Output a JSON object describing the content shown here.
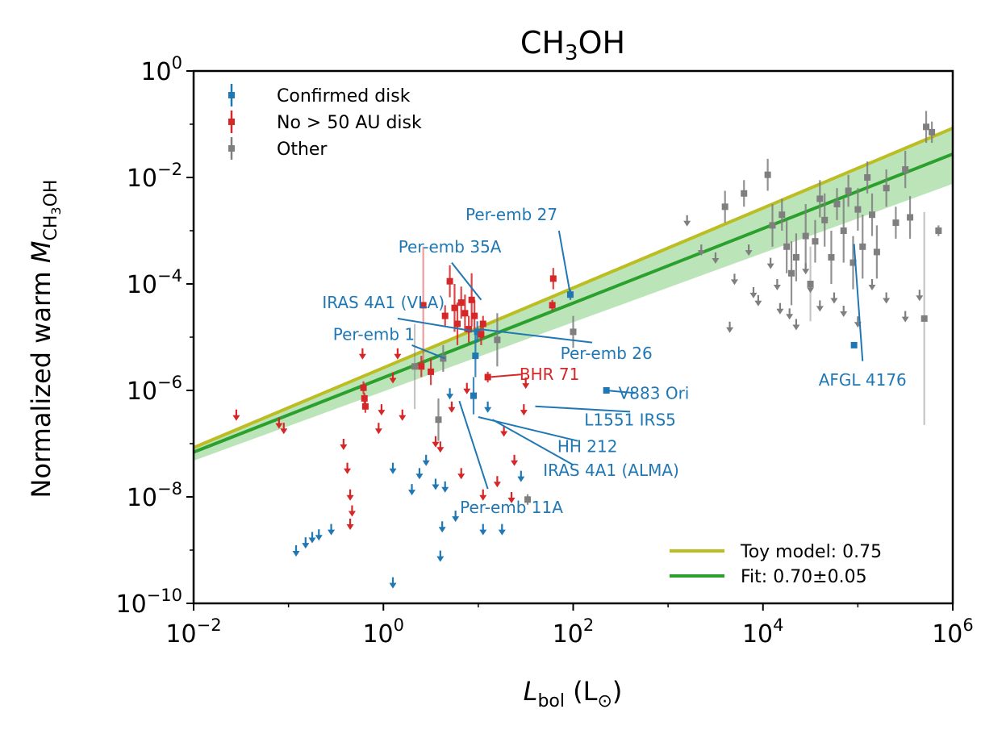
{
  "chart_data": {
    "type": "scatter",
    "title_main": "CH",
    "title_sub": "3",
    "title_end": "OH",
    "xlabel_var": "L",
    "xlabel_sub": "bol",
    "xlabel_unit_open": " (L",
    "xlabel_unit_sym": "⊙",
    "xlabel_unit_close": ")",
    "ylabel_main": "Normalized warm ",
    "ylabel_var": "M",
    "ylabel_sub_a": "CH",
    "ylabel_sub_b": "3",
    "ylabel_sub_c": "OH",
    "xscale": "log",
    "yscale": "log",
    "xlim_exp": [
      -2,
      6
    ],
    "ylim_exp": [
      -10,
      0
    ],
    "x_ticks": [
      {
        "base": "10",
        "exp": "−2",
        "value": -2
      },
      {
        "base": "10",
        "exp": "0",
        "value": 0
      },
      {
        "base": "10",
        "exp": "2",
        "value": 2
      },
      {
        "base": "10",
        "exp": "4",
        "value": 4
      },
      {
        "base": "10",
        "exp": "6",
        "value": 6
      }
    ],
    "y_ticks": [
      {
        "base": "10",
        "exp": "0",
        "value": 0
      },
      {
        "base": "10",
        "exp": "−2",
        "value": -2
      },
      {
        "base": "10",
        "exp": "−4",
        "value": -4
      },
      {
        "base": "10",
        "exp": "−6",
        "value": -6
      },
      {
        "base": "10",
        "exp": "−8",
        "value": -8
      },
      {
        "base": "10",
        "exp": "−10",
        "value": -10
      }
    ],
    "legend_points": [
      {
        "label": "Confirmed disk",
        "color": "#1f77b4"
      },
      {
        "label": "No > 50 AU disk",
        "color": "#d62728"
      },
      {
        "label": "Other",
        "color": "#7f7f7f"
      }
    ],
    "legend_lines": [
      {
        "label": "Toy model: 0.75",
        "color": "#bcbd22"
      },
      {
        "label": "Fit: 0.70±0.05",
        "color": "#2ca02c"
      }
    ],
    "lines": {
      "toy": {
        "slope": 0.75,
        "intercept": -5.575,
        "color": "#bcbd22"
      },
      "fit": {
        "slope": 0.7,
        "intercept": -5.76,
        "color": "#2ca02c"
      },
      "band_lower": {
        "slope": 0.65,
        "intercept": -6.02
      },
      "band_upper": {
        "slope": 0.75,
        "intercept": -5.58
      },
      "band_color": "#98d594"
    },
    "series": [
      {
        "name": "Confirmed disk",
        "color": "#1f77b4",
        "detections": [
          {
            "x": 1.97,
            "y": -4.2,
            "err": 0.1
          },
          {
            "x": 0.99,
            "y": -4.9,
            "err": 0.2
          },
          {
            "x": 0.97,
            "y": -5.35,
            "err": 0.4
          },
          {
            "x": 0.95,
            "y": -6.1,
            "err": 0.35
          },
          {
            "x": 2.35,
            "y": -6.0,
            "err": 0.06
          },
          {
            "x": 4.96,
            "y": -5.15,
            "err": 0.05
          }
        ],
        "limits": [
          {
            "x": -0.92,
            "y": -9.0
          },
          {
            "x": -0.82,
            "y": -8.85
          },
          {
            "x": -0.75,
            "y": -8.75
          },
          {
            "x": -0.68,
            "y": -8.7
          },
          {
            "x": -0.55,
            "y": -8.6
          },
          {
            "x": 0.1,
            "y": -9.6
          },
          {
            "x": 0.1,
            "y": -7.45
          },
          {
            "x": 0.3,
            "y": -7.85
          },
          {
            "x": 0.38,
            "y": -7.55
          },
          {
            "x": 0.45,
            "y": -7.3
          },
          {
            "x": 0.55,
            "y": -7.75
          },
          {
            "x": 0.6,
            "y": -9.1
          },
          {
            "x": 0.62,
            "y": -8.55
          },
          {
            "x": 0.65,
            "y": -7.8
          },
          {
            "x": 0.76,
            "y": -8.35
          },
          {
            "x": 1.05,
            "y": -8.6
          },
          {
            "x": 1.25,
            "y": -8.6
          },
          {
            "x": 1.45,
            "y": -7.6
          },
          {
            "x": 1.1,
            "y": -6.3
          },
          {
            "x": 0.7,
            "y": -6.05
          }
        ]
      },
      {
        "name": "No > 50 AU disk",
        "color": "#d62728",
        "detections": [
          {
            "x": -0.21,
            "y": -5.95,
            "err": 0.12
          },
          {
            "x": -0.2,
            "y": -6.15,
            "err": 0.1
          },
          {
            "x": -0.19,
            "y": -6.3,
            "err": 0.12
          },
          {
            "x": 0.4,
            "y": -5.55,
            "err": 0.2
          },
          {
            "x": 0.42,
            "y": -4.4,
            "err": 1.1
          },
          {
            "x": 0.5,
            "y": -5.65,
            "err": 0.25
          },
          {
            "x": 0.65,
            "y": -4.6,
            "err": 0.2
          },
          {
            "x": 0.7,
            "y": -3.95,
            "err": 0.3
          },
          {
            "x": 0.75,
            "y": -4.45,
            "err": 0.45
          },
          {
            "x": 0.78,
            "y": -4.75,
            "err": 0.4
          },
          {
            "x": 0.82,
            "y": -4.35,
            "err": 0.3
          },
          {
            "x": 0.86,
            "y": -4.55,
            "err": 0.35
          },
          {
            "x": 0.9,
            "y": -4.85,
            "err": 0.25
          },
          {
            "x": 0.93,
            "y": -4.3,
            "err": 0.5
          },
          {
            "x": 0.96,
            "y": -4.6,
            "err": 0.3
          },
          {
            "x": 1.03,
            "y": -4.95,
            "err": 0.2
          },
          {
            "x": 1.05,
            "y": -4.75,
            "err": 0.15
          },
          {
            "x": 1.1,
            "y": -5.75,
            "err": 0.1
          },
          {
            "x": 1.79,
            "y": -3.9,
            "err": 0.2
          },
          {
            "x": 1.78,
            "y": -4.4,
            "err": 0.1
          }
        ],
        "limits": [
          {
            "x": -1.55,
            "y": -6.45
          },
          {
            "x": -1.1,
            "y": -6.6
          },
          {
            "x": -1.05,
            "y": -6.7
          },
          {
            "x": -0.42,
            "y": -7.0
          },
          {
            "x": -0.38,
            "y": -7.45
          },
          {
            "x": -0.35,
            "y": -7.95
          },
          {
            "x": -0.33,
            "y": -8.25
          },
          {
            "x": -0.35,
            "y": -8.5
          },
          {
            "x": -0.22,
            "y": -5.3
          },
          {
            "x": -0.05,
            "y": -6.7
          },
          {
            "x": -0.02,
            "y": -6.35
          },
          {
            "x": 0.1,
            "y": -5.75
          },
          {
            "x": 0.15,
            "y": -5.3
          },
          {
            "x": 0.2,
            "y": -6.45
          },
          {
            "x": 0.55,
            "y": -6.95
          },
          {
            "x": 0.6,
            "y": -7.05
          },
          {
            "x": 0.72,
            "y": -6.3
          },
          {
            "x": 0.82,
            "y": -7.55
          },
          {
            "x": 1.2,
            "y": -7.7
          },
          {
            "x": 1.27,
            "y": -6.75
          },
          {
            "x": 1.38,
            "y": -7.3
          },
          {
            "x": 1.48,
            "y": -6.35
          },
          {
            "x": 1.5,
            "y": -5.85
          },
          {
            "x": 0.88,
            "y": -5.95
          },
          {
            "x": 1.05,
            "y": -7.95
          },
          {
            "x": 1.35,
            "y": -8.0
          }
        ]
      },
      {
        "name": "Other",
        "color": "#7f7f7f",
        "detections": [
          {
            "x": 0.33,
            "y": -5.55,
            "err": 0.8
          },
          {
            "x": 0.63,
            "y": -5.4,
            "err": 0.25
          },
          {
            "x": 1.2,
            "y": -5.05,
            "err": 0.5
          },
          {
            "x": 2.0,
            "y": -4.9,
            "err": 0.3
          },
          {
            "x": 1.52,
            "y": -8.05,
            "err": 0.1
          },
          {
            "x": 0.58,
            "y": -6.55,
            "err": 0.4
          },
          {
            "x": 3.6,
            "y": -2.55,
            "err": 0.3
          },
          {
            "x": 3.8,
            "y": -2.3,
            "err": 0.25
          },
          {
            "x": 4.05,
            "y": -1.95,
            "err": 0.3
          },
          {
            "x": 4.1,
            "y": -2.9,
            "err": 0.4
          },
          {
            "x": 4.2,
            "y": -2.7,
            "err": 0.3
          },
          {
            "x": 4.25,
            "y": -3.3,
            "err": 0.5
          },
          {
            "x": 4.3,
            "y": -3.8,
            "err": 0.6
          },
          {
            "x": 4.35,
            "y": -3.5,
            "err": 0.45
          },
          {
            "x": 4.45,
            "y": -3.1,
            "err": 0.6
          },
          {
            "x": 4.5,
            "y": -4.0,
            "err": 0.7
          },
          {
            "x": 4.55,
            "y": -3.2,
            "err": 0.4
          },
          {
            "x": 4.6,
            "y": -2.4,
            "err": 0.35
          },
          {
            "x": 4.65,
            "y": -2.8,
            "err": 0.5
          },
          {
            "x": 4.72,
            "y": -3.5,
            "err": 0.5
          },
          {
            "x": 4.78,
            "y": -2.5,
            "err": 0.3
          },
          {
            "x": 4.85,
            "y": -3.0,
            "err": 0.6
          },
          {
            "x": 4.9,
            "y": -2.25,
            "err": 0.3
          },
          {
            "x": 4.95,
            "y": -3.6,
            "err": 0.5
          },
          {
            "x": 5.0,
            "y": -2.6,
            "err": 0.4
          },
          {
            "x": 5.05,
            "y": -3.3,
            "err": 0.6
          },
          {
            "x": 5.1,
            "y": -2.0,
            "err": 0.3
          },
          {
            "x": 5.15,
            "y": -2.7,
            "err": 0.4
          },
          {
            "x": 5.2,
            "y": -3.4,
            "err": 0.5
          },
          {
            "x": 5.3,
            "y": -2.2,
            "err": 0.35
          },
          {
            "x": 5.4,
            "y": -2.85,
            "err": 0.3
          },
          {
            "x": 5.5,
            "y": -1.85,
            "err": 0.35
          },
          {
            "x": 5.55,
            "y": -2.75,
            "err": 0.4
          },
          {
            "x": 5.72,
            "y": -1.05,
            "err": 0.3
          },
          {
            "x": 5.78,
            "y": -1.15,
            "err": 0.2
          },
          {
            "x": 5.7,
            "y": -4.65,
            "err": 2.0
          },
          {
            "x": 5.85,
            "y": -3.0,
            "err": 0.1
          }
        ],
        "limits": [
          {
            "x": 3.2,
            "y": -2.8
          },
          {
            "x": 3.35,
            "y": -3.35
          },
          {
            "x": 3.5,
            "y": -3.5
          },
          {
            "x": 3.65,
            "y": -4.8
          },
          {
            "x": 3.7,
            "y": -3.9
          },
          {
            "x": 3.85,
            "y": -3.35
          },
          {
            "x": 3.9,
            "y": -4.15
          },
          {
            "x": 3.95,
            "y": -4.3
          },
          {
            "x": 4.08,
            "y": -3.6
          },
          {
            "x": 4.15,
            "y": -4.0
          },
          {
            "x": 4.18,
            "y": -4.45
          },
          {
            "x": 4.28,
            "y": -4.55
          },
          {
            "x": 4.35,
            "y": -4.75
          },
          {
            "x": 4.5,
            "y": -4.05
          },
          {
            "x": 4.6,
            "y": -4.4
          },
          {
            "x": 4.75,
            "y": -4.25
          },
          {
            "x": 4.85,
            "y": -4.5
          },
          {
            "x": 5.0,
            "y": -4.7
          },
          {
            "x": 5.15,
            "y": -4.0
          },
          {
            "x": 5.5,
            "y": -4.6
          },
          {
            "x": 5.65,
            "y": -4.2
          },
          {
            "x": 5.3,
            "y": -4.25
          },
          {
            "x": 4.45,
            "y": -3.7
          }
        ]
      }
    ],
    "annotations": [
      {
        "text": "Per-emb 27",
        "color": "#1f77b4",
        "target": [
          1.97,
          -4.2
        ],
        "label_pos": [
          1.35,
          -2.7
        ],
        "leader_from": [
          1.85,
          -3.0
        ]
      },
      {
        "text": "Per-emb 35A",
        "color": "#1f77b4",
        "target": [
          1.03,
          -4.3
        ],
        "label_pos": [
          0.7,
          -3.3
        ],
        "leader_from": [
          0.72,
          -3.6
        ]
      },
      {
        "text": "IRAS 4A1 (VLA)",
        "color": "#1f77b4",
        "target": [
          0.99,
          -4.9
        ],
        "label_pos": [
          0.0,
          -4.35
        ],
        "leader_from": [
          0.15,
          -4.65
        ]
      },
      {
        "text": "Per-emb 1",
        "color": "#1f77b4",
        "target": [
          0.65,
          -5.4
        ],
        "label_pos": [
          -0.1,
          -4.95
        ],
        "leader_from": [
          0.3,
          -5.15
        ]
      },
      {
        "text": "Per-emb 26",
        "color": "#1f77b4",
        "target": [
          1.02,
          -4.85
        ],
        "label_pos": [
          2.35,
          -5.3
        ],
        "leader_from": [
          2.2,
          -5.1
        ]
      },
      {
        "text": "BHR 71",
        "color": "#d62728",
        "target": [
          1.12,
          -5.75
        ],
        "label_pos": [
          1.75,
          -5.7
        ],
        "leader_from": [
          1.45,
          -5.7
        ]
      },
      {
        "text": "V883 Ori",
        "color": "#1f77b4",
        "target": [
          2.35,
          -6.0
        ],
        "label_pos": [
          2.85,
          -6.05
        ],
        "leader_from": [
          2.65,
          -6.05
        ]
      },
      {
        "text": "AFGL 4176",
        "color": "#1f77b4",
        "target": [
          4.96,
          -3.25
        ],
        "label_pos": [
          5.05,
          -5.8
        ],
        "leader_from": [
          5.05,
          -5.45
        ]
      },
      {
        "text": "L1551 IRS5",
        "color": "#1f77b4",
        "target": [
          1.6,
          -6.3
        ],
        "label_pos": [
          2.6,
          -6.55
        ],
        "leader_from": [
          2.6,
          -6.4
        ]
      },
      {
        "text": "HH 212",
        "color": "#1f77b4",
        "target": [
          1.0,
          -6.5
        ],
        "label_pos": [
          2.15,
          -7.05
        ],
        "leader_from": [
          2.05,
          -6.95
        ]
      },
      {
        "text": "IRAS 4A1 (ALMA)",
        "color": "#1f77b4",
        "target": [
          1.15,
          -6.55
        ],
        "label_pos": [
          2.4,
          -7.5
        ],
        "leader_from": [
          2.0,
          -7.4
        ]
      },
      {
        "text": "Per-emb 11A",
        "color": "#1f77b4",
        "target": [
          0.8,
          -6.2
        ],
        "label_pos": [
          1.35,
          -8.2
        ],
        "leader_from": [
          1.1,
          -7.85
        ]
      }
    ]
  }
}
